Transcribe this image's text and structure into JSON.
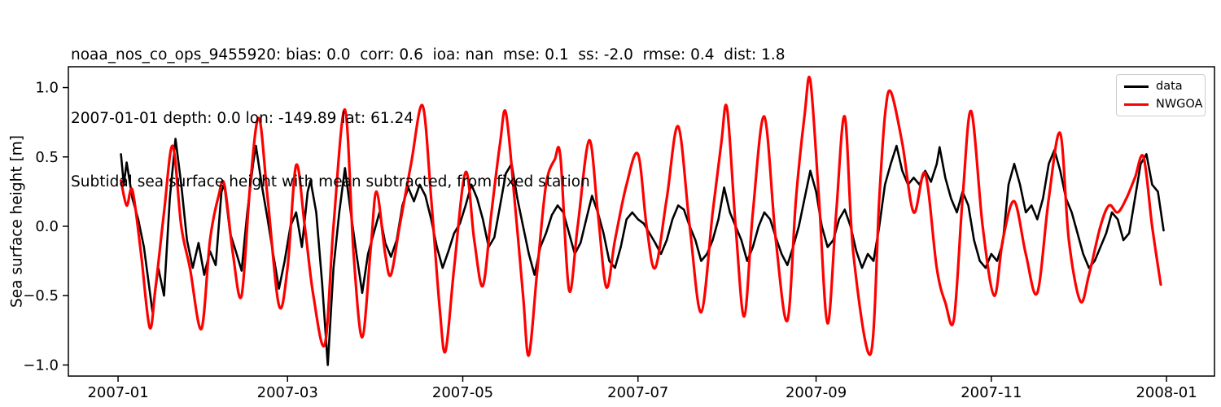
{
  "titles": {
    "stats_line": "noaa_nos_co_ops_9455920: bias: 0.0  corr: 0.6  ioa: nan  mse: 0.1  ss: -2.0  rmse: 0.4  dist: 1.8",
    "meta_line": "2007-01-01 depth: 0.0 lon: -149.89 lat: 61.24",
    "plot_title": "Subtidal sea surface height with mean subtracted, from fixed station"
  },
  "colors": {
    "background": "#ffffff",
    "axes": "#000000",
    "data_series": "#000000",
    "model_series": "#ff0000",
    "legend_border": "#cccccc"
  },
  "legend": {
    "position": "upper right",
    "entries": [
      {
        "label": "data",
        "color": "#000000"
      },
      {
        "label": "NWGOA",
        "color": "#ff0000"
      }
    ]
  },
  "chart_data": {
    "type": "line",
    "title": "Subtidal sea surface height with mean subtracted, from fixed station",
    "xlabel": "",
    "ylabel": "Sea surface height [m]",
    "x_unit": "day_of_year_2007 (1 = 2007-01-01)",
    "grid": false,
    "xlim_days": [
      -16.3,
      382.7
    ],
    "ylim": [
      -1.08,
      1.15
    ],
    "x_ticks": [
      {
        "day": 1,
        "label": "2007-01"
      },
      {
        "day": 60,
        "label": "2007-03"
      },
      {
        "day": 121,
        "label": "2007-05"
      },
      {
        "day": 182,
        "label": "2007-07"
      },
      {
        "day": 244,
        "label": "2007-09"
      },
      {
        "day": 305,
        "label": "2007-11"
      },
      {
        "day": 366,
        "label": "2008-01"
      }
    ],
    "y_ticks": [
      {
        "value": 1.0,
        "label": "1.0"
      },
      {
        "value": 0.5,
        "label": "0.5"
      },
      {
        "value": 0.0,
        "label": "0.0"
      },
      {
        "value": -0.5,
        "label": "−0.5"
      },
      {
        "value": -1.0,
        "label": "−1.0"
      }
    ],
    "series": [
      {
        "name": "data",
        "color": "#000000",
        "line_width": 2.6,
        "smooth": false,
        "points": [
          [
            2,
            0.52
          ],
          [
            3,
            0.3
          ],
          [
            4,
            0.46
          ],
          [
            6,
            0.2
          ],
          [
            8,
            0.05
          ],
          [
            10,
            -0.15
          ],
          [
            13,
            -0.62
          ],
          [
            15,
            -0.3
          ],
          [
            17,
            -0.5
          ],
          [
            19,
            0.2
          ],
          [
            21,
            0.63
          ],
          [
            23,
            0.3
          ],
          [
            25,
            -0.1
          ],
          [
            27,
            -0.3
          ],
          [
            29,
            -0.12
          ],
          [
            31,
            -0.35
          ],
          [
            33,
            -0.18
          ],
          [
            35,
            -0.28
          ],
          [
            37,
            0.25
          ],
          [
            38,
            0.3
          ],
          [
            40,
            -0.05
          ],
          [
            42,
            -0.18
          ],
          [
            44,
            -0.32
          ],
          [
            46,
            0.1
          ],
          [
            48,
            0.45
          ],
          [
            49,
            0.58
          ],
          [
            51,
            0.3
          ],
          [
            53,
            0.06
          ],
          [
            55,
            -0.2
          ],
          [
            57,
            -0.45
          ],
          [
            59,
            -0.25
          ],
          [
            61,
            0.0
          ],
          [
            63,
            0.1
          ],
          [
            65,
            -0.15
          ],
          [
            67,
            0.25
          ],
          [
            68,
            0.33
          ],
          [
            70,
            0.1
          ],
          [
            72,
            -0.4
          ],
          [
            74,
            -1.0
          ],
          [
            76,
            -0.3
          ],
          [
            78,
            0.1
          ],
          [
            80,
            0.42
          ],
          [
            82,
            0.1
          ],
          [
            84,
            -0.2
          ],
          [
            86,
            -0.48
          ],
          [
            88,
            -0.2
          ],
          [
            90,
            -0.05
          ],
          [
            92,
            0.1
          ],
          [
            94,
            -0.12
          ],
          [
            96,
            -0.22
          ],
          [
            98,
            -0.1
          ],
          [
            100,
            0.15
          ],
          [
            102,
            0.28
          ],
          [
            104,
            0.18
          ],
          [
            106,
            0.3
          ],
          [
            108,
            0.22
          ],
          [
            110,
            0.05
          ],
          [
            112,
            -0.15
          ],
          [
            114,
            -0.3
          ],
          [
            116,
            -0.18
          ],
          [
            118,
            -0.05
          ],
          [
            120,
            0.02
          ],
          [
            122,
            0.15
          ],
          [
            124,
            0.3
          ],
          [
            126,
            0.2
          ],
          [
            128,
            0.05
          ],
          [
            130,
            -0.15
          ],
          [
            132,
            -0.08
          ],
          [
            134,
            0.15
          ],
          [
            136,
            0.38
          ],
          [
            138,
            0.45
          ],
          [
            140,
            0.2
          ],
          [
            142,
            0.0
          ],
          [
            144,
            -0.2
          ],
          [
            146,
            -0.35
          ],
          [
            148,
            -0.15
          ],
          [
            150,
            -0.05
          ],
          [
            152,
            0.08
          ],
          [
            154,
            0.15
          ],
          [
            156,
            0.1
          ],
          [
            158,
            -0.05
          ],
          [
            160,
            -0.2
          ],
          [
            162,
            -0.12
          ],
          [
            164,
            0.05
          ],
          [
            166,
            0.22
          ],
          [
            168,
            0.1
          ],
          [
            170,
            -0.05
          ],
          [
            172,
            -0.25
          ],
          [
            174,
            -0.3
          ],
          [
            176,
            -0.15
          ],
          [
            178,
            0.05
          ],
          [
            180,
            0.1
          ],
          [
            182,
            0.05
          ],
          [
            184,
            0.02
          ],
          [
            186,
            -0.05
          ],
          [
            188,
            -0.12
          ],
          [
            190,
            -0.2
          ],
          [
            192,
            -0.1
          ],
          [
            194,
            0.05
          ],
          [
            196,
            0.15
          ],
          [
            198,
            0.12
          ],
          [
            200,
            0.0
          ],
          [
            202,
            -0.1
          ],
          [
            204,
            -0.25
          ],
          [
            206,
            -0.2
          ],
          [
            208,
            -0.1
          ],
          [
            210,
            0.05
          ],
          [
            212,
            0.28
          ],
          [
            214,
            0.1
          ],
          [
            216,
            0.0
          ],
          [
            218,
            -0.1
          ],
          [
            220,
            -0.25
          ],
          [
            222,
            -0.15
          ],
          [
            224,
            0.0
          ],
          [
            226,
            0.1
          ],
          [
            228,
            0.05
          ],
          [
            230,
            -0.08
          ],
          [
            232,
            -0.2
          ],
          [
            234,
            -0.28
          ],
          [
            236,
            -0.15
          ],
          [
            238,
            0.0
          ],
          [
            240,
            0.2
          ],
          [
            242,
            0.4
          ],
          [
            244,
            0.25
          ],
          [
            246,
            0.0
          ],
          [
            248,
            -0.15
          ],
          [
            250,
            -0.1
          ],
          [
            252,
            0.05
          ],
          [
            254,
            0.12
          ],
          [
            256,
            0.0
          ],
          [
            258,
            -0.18
          ],
          [
            260,
            -0.3
          ],
          [
            262,
            -0.2
          ],
          [
            264,
            -0.25
          ],
          [
            266,
            0.0
          ],
          [
            268,
            0.3
          ],
          [
            270,
            0.45
          ],
          [
            272,
            0.58
          ],
          [
            274,
            0.4
          ],
          [
            276,
            0.3
          ],
          [
            278,
            0.35
          ],
          [
            280,
            0.3
          ],
          [
            282,
            0.4
          ],
          [
            284,
            0.32
          ],
          [
            286,
            0.45
          ],
          [
            287,
            0.57
          ],
          [
            289,
            0.35
          ],
          [
            291,
            0.2
          ],
          [
            293,
            0.1
          ],
          [
            295,
            0.25
          ],
          [
            297,
            0.15
          ],
          [
            299,
            -0.1
          ],
          [
            301,
            -0.25
          ],
          [
            303,
            -0.3
          ],
          [
            305,
            -0.2
          ],
          [
            307,
            -0.25
          ],
          [
            309,
            -0.12
          ],
          [
            311,
            0.3
          ],
          [
            313,
            0.45
          ],
          [
            315,
            0.3
          ],
          [
            317,
            0.1
          ],
          [
            319,
            0.15
          ],
          [
            321,
            0.05
          ],
          [
            323,
            0.2
          ],
          [
            325,
            0.45
          ],
          [
            327,
            0.55
          ],
          [
            329,
            0.4
          ],
          [
            331,
            0.2
          ],
          [
            333,
            0.1
          ],
          [
            335,
            -0.05
          ],
          [
            337,
            -0.2
          ],
          [
            339,
            -0.3
          ],
          [
            341,
            -0.25
          ],
          [
            343,
            -0.15
          ],
          [
            345,
            -0.05
          ],
          [
            347,
            0.1
          ],
          [
            349,
            0.05
          ],
          [
            351,
            -0.1
          ],
          [
            353,
            -0.05
          ],
          [
            355,
            0.2
          ],
          [
            357,
            0.45
          ],
          [
            359,
            0.52
          ],
          [
            361,
            0.3
          ],
          [
            363,
            0.25
          ],
          [
            365,
            -0.03
          ]
        ]
      },
      {
        "name": "NWGOA",
        "color": "#ff0000",
        "line_width": 3.2,
        "smooth": true,
        "points": [
          [
            2,
            0.33
          ],
          [
            4,
            0.15
          ],
          [
            6,
            0.26
          ],
          [
            9,
            -0.2
          ],
          [
            12,
            -0.73
          ],
          [
            14,
            -0.45
          ],
          [
            17,
            0.1
          ],
          [
            20,
            0.58
          ],
          [
            23,
            0.0
          ],
          [
            26,
            -0.3
          ],
          [
            30,
            -0.74
          ],
          [
            33,
            -0.1
          ],
          [
            36,
            0.22
          ],
          [
            38,
            0.3
          ],
          [
            41,
            -0.2
          ],
          [
            44,
            -0.5
          ],
          [
            47,
            0.3
          ],
          [
            50,
            0.78
          ],
          [
            53,
            0.22
          ],
          [
            57,
            -0.57
          ],
          [
            60,
            -0.3
          ],
          [
            63,
            0.44
          ],
          [
            66,
            0.0
          ],
          [
            69,
            -0.5
          ],
          [
            73,
            -0.85
          ],
          [
            76,
            0.0
          ],
          [
            80,
            0.84
          ],
          [
            83,
            -0.2
          ],
          [
            86,
            -0.8
          ],
          [
            89,
            -0.15
          ],
          [
            91,
            0.25
          ],
          [
            94,
            -0.2
          ],
          [
            96,
            -0.35
          ],
          [
            99,
            0.0
          ],
          [
            103,
            0.45
          ],
          [
            107,
            0.87
          ],
          [
            110,
            0.2
          ],
          [
            113,
            -0.6
          ],
          [
            115,
            -0.9
          ],
          [
            118,
            -0.3
          ],
          [
            122,
            0.39
          ],
          [
            125,
            -0.1
          ],
          [
            128,
            -0.43
          ],
          [
            131,
            0.1
          ],
          [
            134,
            0.6
          ],
          [
            136,
            0.82
          ],
          [
            139,
            0.2
          ],
          [
            142,
            -0.5
          ],
          [
            144,
            -0.93
          ],
          [
            147,
            -0.3
          ],
          [
            150,
            0.3
          ],
          [
            153,
            0.48
          ],
          [
            155,
            0.5
          ],
          [
            158,
            -0.46
          ],
          [
            161,
            0.0
          ],
          [
            165,
            0.62
          ],
          [
            168,
            0.1
          ],
          [
            171,
            -0.44
          ],
          [
            174,
            -0.1
          ],
          [
            178,
            0.3
          ],
          [
            182,
            0.52
          ],
          [
            185,
            0.0
          ],
          [
            188,
            -0.3
          ],
          [
            192,
            0.2
          ],
          [
            196,
            0.72
          ],
          [
            200,
            0.0
          ],
          [
            204,
            -0.62
          ],
          [
            208,
            0.1
          ],
          [
            211,
            0.6
          ],
          [
            213,
            0.85
          ],
          [
            216,
            0.0
          ],
          [
            219,
            -0.65
          ],
          [
            222,
            0.1
          ],
          [
            226,
            0.79
          ],
          [
            230,
            -0.1
          ],
          [
            234,
            -0.68
          ],
          [
            237,
            0.2
          ],
          [
            240,
            0.8
          ],
          [
            242,
            1.05
          ],
          [
            245,
            0.2
          ],
          [
            248,
            -0.7
          ],
          [
            251,
            0.1
          ],
          [
            254,
            0.79
          ],
          [
            257,
            -0.2
          ],
          [
            263,
            -0.92
          ],
          [
            266,
            0.2
          ],
          [
            268,
            0.8
          ],
          [
            270,
            0.97
          ],
          [
            274,
            0.6
          ],
          [
            278,
            0.1
          ],
          [
            282,
            0.38
          ],
          [
            286,
            -0.3
          ],
          [
            289,
            -0.55
          ],
          [
            292,
            -0.67
          ],
          [
            295,
            0.2
          ],
          [
            298,
            0.83
          ],
          [
            302,
            0.0
          ],
          [
            306,
            -0.5
          ],
          [
            309,
            -0.1
          ],
          [
            313,
            0.18
          ],
          [
            317,
            -0.2
          ],
          [
            321,
            -0.48
          ],
          [
            325,
            0.2
          ],
          [
            329,
            0.67
          ],
          [
            332,
            -0.1
          ],
          [
            336,
            -0.54
          ],
          [
            339,
            -0.35
          ],
          [
            343,
            0.0
          ],
          [
            346,
            0.15
          ],
          [
            349,
            0.1
          ],
          [
            352,
            0.2
          ],
          [
            355,
            0.35
          ],
          [
            358,
            0.5
          ],
          [
            361,
            0.0
          ],
          [
            364,
            -0.42
          ]
        ]
      }
    ]
  }
}
